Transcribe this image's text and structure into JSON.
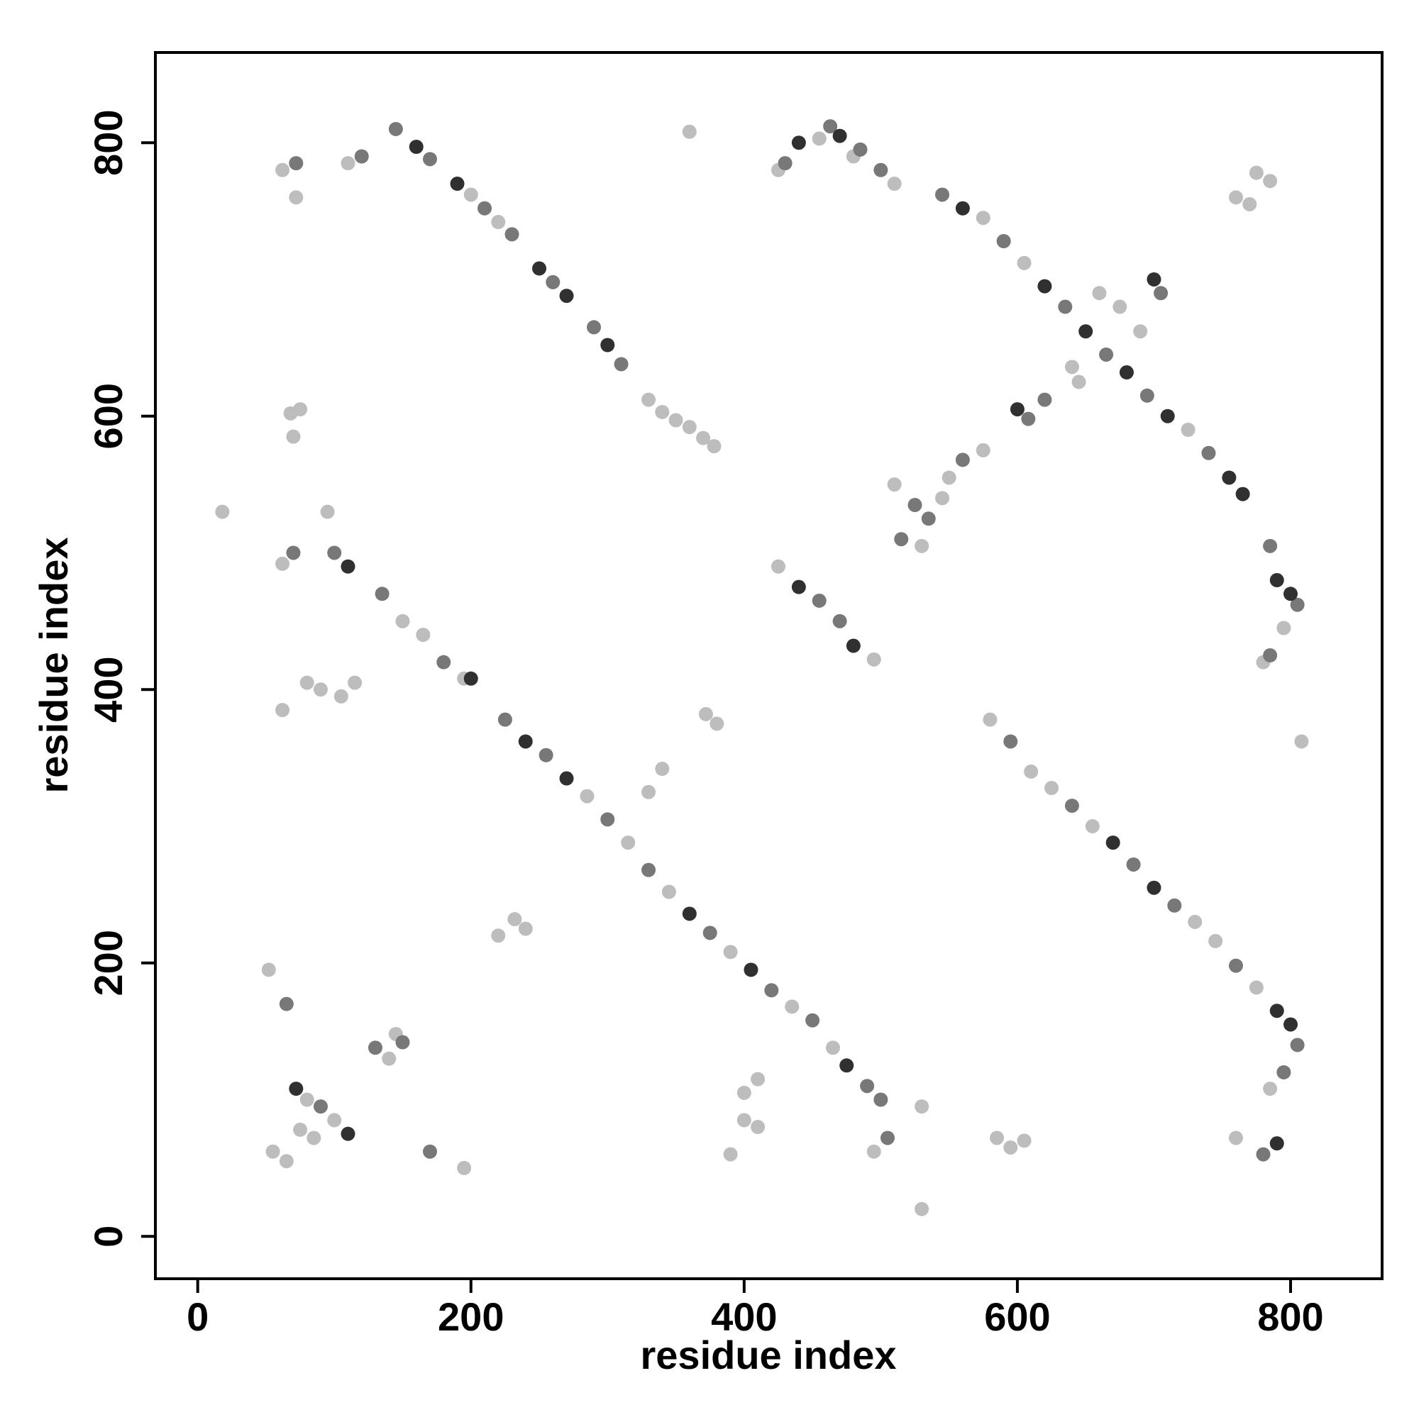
{
  "chart_data": {
    "type": "scatter",
    "x_label": "residue index",
    "y_label": "residue index",
    "xlim": [
      -31,
      867
    ],
    "ylim": [
      -31,
      866
    ],
    "xticks": [
      0,
      200,
      400,
      600,
      800
    ],
    "yticks": [
      0,
      200,
      400,
      600,
      800
    ],
    "grid": false,
    "series": [
      {
        "color": "#bdbdbd",
        "x": [
          110,
          200,
          220,
          330,
          340,
          350,
          360,
          370,
          378,
          425,
          455,
          480,
          510,
          575,
          605,
          725,
          150,
          165,
          195,
          285,
          315,
          345,
          390,
          435,
          465,
          425,
          495,
          780,
          795,
          580,
          610,
          625,
          655,
          730,
          745,
          775,
          785,
          62,
          72,
          68,
          75,
          70,
          18,
          95,
          62,
          80,
          90,
          62,
          105,
          115,
          372,
          380,
          330,
          340,
          220,
          232,
          240,
          52,
          140,
          145,
          80,
          100,
          55,
          65,
          75,
          85,
          195,
          390,
          400,
          410,
          400,
          410,
          495,
          530,
          530,
          585,
          595,
          605,
          760,
          360,
          760,
          770,
          775,
          785,
          660,
          675,
          690,
          640,
          645,
          510,
          545,
          550,
          575,
          530,
          808
        ],
        "values": [
          785,
          762,
          742,
          612,
          603,
          597,
          592,
          584,
          578,
          780,
          803,
          790,
          770,
          745,
          712,
          590,
          450,
          440,
          408,
          322,
          288,
          252,
          208,
          168,
          138,
          490,
          422,
          420,
          445,
          378,
          340,
          328,
          300,
          230,
          216,
          182,
          108,
          780,
          760,
          602,
          605,
          585,
          530,
          530,
          492,
          405,
          400,
          385,
          395,
          405,
          382,
          375,
          325,
          342,
          220,
          232,
          225,
          195,
          130,
          148,
          100,
          85,
          62,
          55,
          78,
          72,
          50,
          60,
          105,
          115,
          85,
          80,
          62,
          95,
          20,
          72,
          65,
          70,
          72,
          808,
          760,
          755,
          778,
          772,
          690,
          680,
          662,
          636,
          625,
          550,
          540,
          555,
          575,
          505,
          362
        ]
      },
      {
        "color": "#787878",
        "x": [
          120,
          145,
          170,
          210,
          230,
          260,
          290,
          310,
          430,
          463,
          485,
          500,
          545,
          590,
          635,
          665,
          695,
          740,
          100,
          135,
          180,
          225,
          255,
          300,
          330,
          375,
          420,
          450,
          490,
          500,
          455,
          470,
          785,
          805,
          785,
          595,
          640,
          685,
          715,
          760,
          805,
          795,
          70,
          130,
          150,
          90,
          65,
          170,
          505,
          525,
          535,
          515,
          560,
          608,
          620,
          705,
          72,
          780
        ],
        "values": [
          790,
          810,
          788,
          752,
          733,
          698,
          665,
          638,
          785,
          812,
          795,
          780,
          762,
          728,
          680,
          645,
          615,
          573,
          500,
          470,
          420,
          378,
          352,
          305,
          268,
          222,
          180,
          158,
          110,
          100,
          465,
          450,
          505,
          462,
          425,
          362,
          315,
          272,
          242,
          198,
          140,
          120,
          500,
          138,
          142,
          95,
          170,
          62,
          72,
          535,
          525,
          510,
          568,
          598,
          612,
          690,
          785,
          60
        ]
      },
      {
        "color": "#303030",
        "x": [
          160,
          190,
          250,
          270,
          300,
          440,
          470,
          560,
          620,
          650,
          680,
          710,
          755,
          765,
          110,
          200,
          240,
          270,
          360,
          405,
          475,
          440,
          480,
          790,
          800,
          670,
          700,
          790,
          800,
          600,
          700,
          110,
          72,
          790
        ],
        "values": [
          797,
          770,
          708,
          688,
          652,
          800,
          805,
          752,
          695,
          662,
          632,
          600,
          555,
          543,
          490,
          408,
          362,
          335,
          236,
          195,
          125,
          475,
          432,
          480,
          470,
          288,
          255,
          165,
          155,
          605,
          700,
          75,
          108,
          68
        ]
      }
    ]
  }
}
